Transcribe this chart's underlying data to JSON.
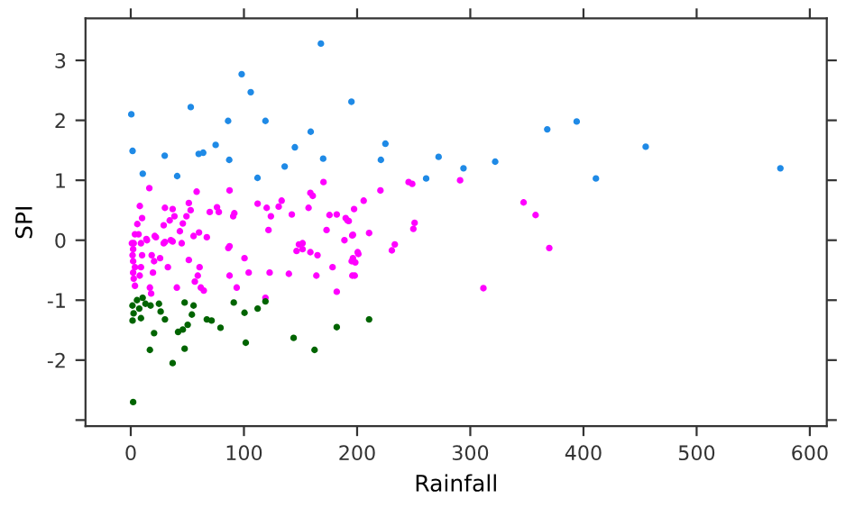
{
  "chart_data": {
    "type": "scatter",
    "xlabel": "Rainfall",
    "ylabel": "SPI",
    "xlim": [
      -40,
      615
    ],
    "ylim": [
      -3.1,
      3.7
    ],
    "xticks": [
      0,
      100,
      200,
      300,
      400,
      500,
      600
    ],
    "yticks": [
      {
        "value": -3,
        "label": null
      },
      -2,
      -1,
      0,
      1,
      2,
      3
    ],
    "grid": false,
    "legend": false,
    "marker": "circle",
    "series": [
      {
        "color": "#1f8ae6",
        "x": [
          0.5,
          1.6,
          10.6,
          30,
          41,
          53,
          60,
          64,
          75,
          86,
          87,
          98,
          106,
          112,
          119,
          136,
          145,
          159,
          168,
          170,
          195,
          225,
          221,
          261,
          272,
          294,
          322,
          368,
          394,
          411,
          455,
          574
        ],
        "values": [
          2.1,
          1.49,
          1.11,
          1.41,
          1.07,
          2.22,
          1.44,
          1.46,
          1.59,
          1.99,
          1.34,
          2.77,
          2.47,
          1.04,
          1.99,
          1.23,
          1.55,
          1.81,
          3.28,
          1.36,
          2.31,
          1.61,
          1.34,
          1.03,
          1.39,
          1.2,
          1.31,
          1.85,
          1.98,
          1.03,
          1.56,
          1.2
        ]
      },
      {
        "color": "#ff00ff",
        "x": [
          16.4,
          8.0,
          10.0,
          5.8,
          6.9,
          2.6,
          13.8,
          21.2,
          30.2,
          37.0,
          38.6,
          34.4,
          29.1,
          30.2,
          37.0,
          43.4,
          46.0,
          49.2,
          51.3,
          52.9,
          58.2,
          55.5,
          60.3,
          69.8,
          76.2,
          77.8,
          87.3,
          91.5,
          90.5,
          87.3,
          112.1,
          120.1,
          121.7,
          123.8,
          130.7,
          133.3,
          142.3,
          148.6,
          151.8,
          157.1,
          158.7,
          160.8,
          170.3,
          173.0,
          175.6,
          182.0,
          189.9,
          192.6,
          195.7,
          197.3,
          3.7,
          1.0,
          2.1,
          1.6,
          2.1,
          3.7,
          2.1,
          2.6,
          3.7,
          9.0,
          10.0,
          9.0,
          7.9,
          14.3,
          18.5,
          20.6,
          19.6,
          16.9,
          18.0,
          22.2,
          25.9,
          29.1,
          32.8,
          35.4,
          40.7,
          45.0,
          51.3,
          56.6,
          59.2,
          61.9,
          64.5,
          60.8,
          67.2,
          87.3,
          86.2,
          93.6,
          100.5,
          104.2,
          119.0,
          122.7,
          139.7,
          146.5,
          151.8,
          158.7,
          164.0,
          165.0,
          178.3,
          182.0,
          188.8,
          195.2,
          197.9,
          200.5,
          191.5,
          196.3,
          196.3,
          198.4,
          195.8,
          201.1,
          210.6,
          205.8,
          220.6,
          245.5,
          248.7,
          291.0,
          250.8,
          249.7,
          230.7,
          233.3,
          311.6,
          347.1,
          357.7,
          369.8
        ],
        "values": [
          0.87,
          0.57,
          0.37,
          0.27,
          0.1,
          -0.05,
          0.02,
          0.07,
          0.54,
          0.52,
          0.4,
          0.33,
          0.25,
          -0.03,
          -0.02,
          0.15,
          0.28,
          0.4,
          0.62,
          0.5,
          0.81,
          0.07,
          0.13,
          0.47,
          0.55,
          0.47,
          0.83,
          0.45,
          0.4,
          -0.1,
          0.61,
          0.54,
          0.17,
          0.4,
          0.56,
          0.66,
          0.43,
          -0.07,
          -0.05,
          0.54,
          0.79,
          0.74,
          0.97,
          0.17,
          0.42,
          0.43,
          0.37,
          0.32,
          0.08,
          0.52,
          0.1,
          -0.05,
          -0.15,
          -0.25,
          -0.35,
          -0.45,
          -0.54,
          -0.64,
          -0.76,
          -0.05,
          -0.25,
          -0.45,
          -0.59,
          0.0,
          -0.25,
          -0.35,
          -0.54,
          -0.79,
          -0.89,
          0.05,
          -0.3,
          -0.05,
          -0.45,
          0.0,
          -0.79,
          -0.05,
          -0.33,
          -0.69,
          -0.59,
          -0.79,
          -0.84,
          -0.45,
          0.05,
          -0.59,
          -0.13,
          -0.79,
          -0.3,
          -0.54,
          -0.96,
          -0.54,
          -0.56,
          -0.18,
          -0.15,
          -0.2,
          -0.59,
          -0.25,
          -0.45,
          -0.86,
          0.0,
          -0.35,
          -0.59,
          -0.2,
          0.33,
          0.09,
          -0.3,
          -0.37,
          -0.59,
          -0.23,
          0.12,
          0.66,
          0.83,
          0.97,
          0.94,
          1.0,
          0.29,
          0.19,
          -0.17,
          -0.07,
          -0.8,
          0.63,
          0.42,
          -0.13
        ]
      },
      {
        "color": "#006400",
        "x": [
          1.5,
          5.5,
          10.5,
          2.5,
          7.5,
          13.0,
          17.5,
          1.6,
          9.0,
          24.9,
          26.4,
          30.2,
          20.6,
          16.9,
          2.1,
          37.0,
          47.6,
          55.5,
          54.0,
          50.3,
          46.0,
          41.8,
          47.6,
          67.2,
          71.4,
          79.3,
          91.0,
          100.5,
          101.6,
          112.1,
          119.0,
          143.9,
          162.4,
          182.0,
          210.6
        ],
        "values": [
          -1.09,
          -1.0,
          -0.96,
          -1.22,
          -1.14,
          -1.06,
          -1.09,
          -1.34,
          -1.3,
          -1.06,
          -1.19,
          -1.32,
          -1.55,
          -1.83,
          -2.7,
          -2.05,
          -1.04,
          -1.09,
          -1.24,
          -1.41,
          -1.49,
          -1.53,
          -1.81,
          -1.32,
          -1.34,
          -1.46,
          -1.04,
          -1.21,
          -1.71,
          -1.14,
          -1.02,
          -1.63,
          -1.83,
          -1.45,
          -1.32
        ]
      }
    ]
  }
}
